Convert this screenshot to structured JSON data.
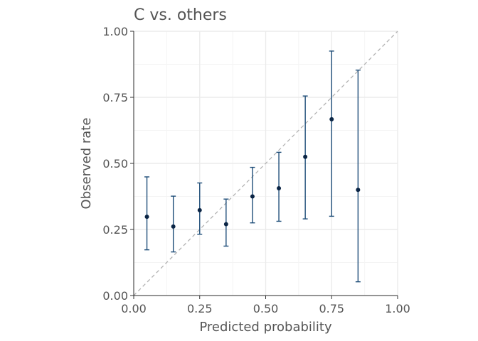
{
  "chart_data": {
    "type": "scatter",
    "title": "C vs. others",
    "xlabel": "Predicted probability",
    "ylabel": "Observed rate",
    "xlim": [
      0,
      1
    ],
    "ylim": [
      0,
      1
    ],
    "x_ticks": [
      "0.00",
      "0.25",
      "0.50",
      "0.75",
      "1.00"
    ],
    "y_ticks": [
      "0.00",
      "0.25",
      "0.50",
      "0.75",
      "1.00"
    ],
    "grid": true,
    "reference_line": "y = x (dashed)",
    "points": [
      {
        "x": 0.05,
        "y": 0.298,
        "lower": 0.173,
        "upper": 0.449
      },
      {
        "x": 0.15,
        "y": 0.261,
        "lower": 0.165,
        "upper": 0.376
      },
      {
        "x": 0.25,
        "y": 0.323,
        "lower": 0.232,
        "upper": 0.426
      },
      {
        "x": 0.35,
        "y": 0.27,
        "lower": 0.187,
        "upper": 0.365
      },
      {
        "x": 0.45,
        "y": 0.375,
        "lower": 0.275,
        "upper": 0.485
      },
      {
        "x": 0.55,
        "y": 0.406,
        "lower": 0.281,
        "upper": 0.542
      },
      {
        "x": 0.65,
        "y": 0.525,
        "lower": 0.29,
        "upper": 0.755
      },
      {
        "x": 0.75,
        "y": 0.667,
        "lower": 0.3,
        "upper": 0.925
      },
      {
        "x": 0.85,
        "y": 0.4,
        "lower": 0.052,
        "upper": 0.853
      }
    ],
    "colors": {
      "point": "#0b2545",
      "errorbar": "#1f4e79",
      "reference": "#b3b3b3",
      "grid_major": "#ebebeb",
      "grid_minor": "#f4f4f4",
      "axis": "#333333"
    }
  }
}
